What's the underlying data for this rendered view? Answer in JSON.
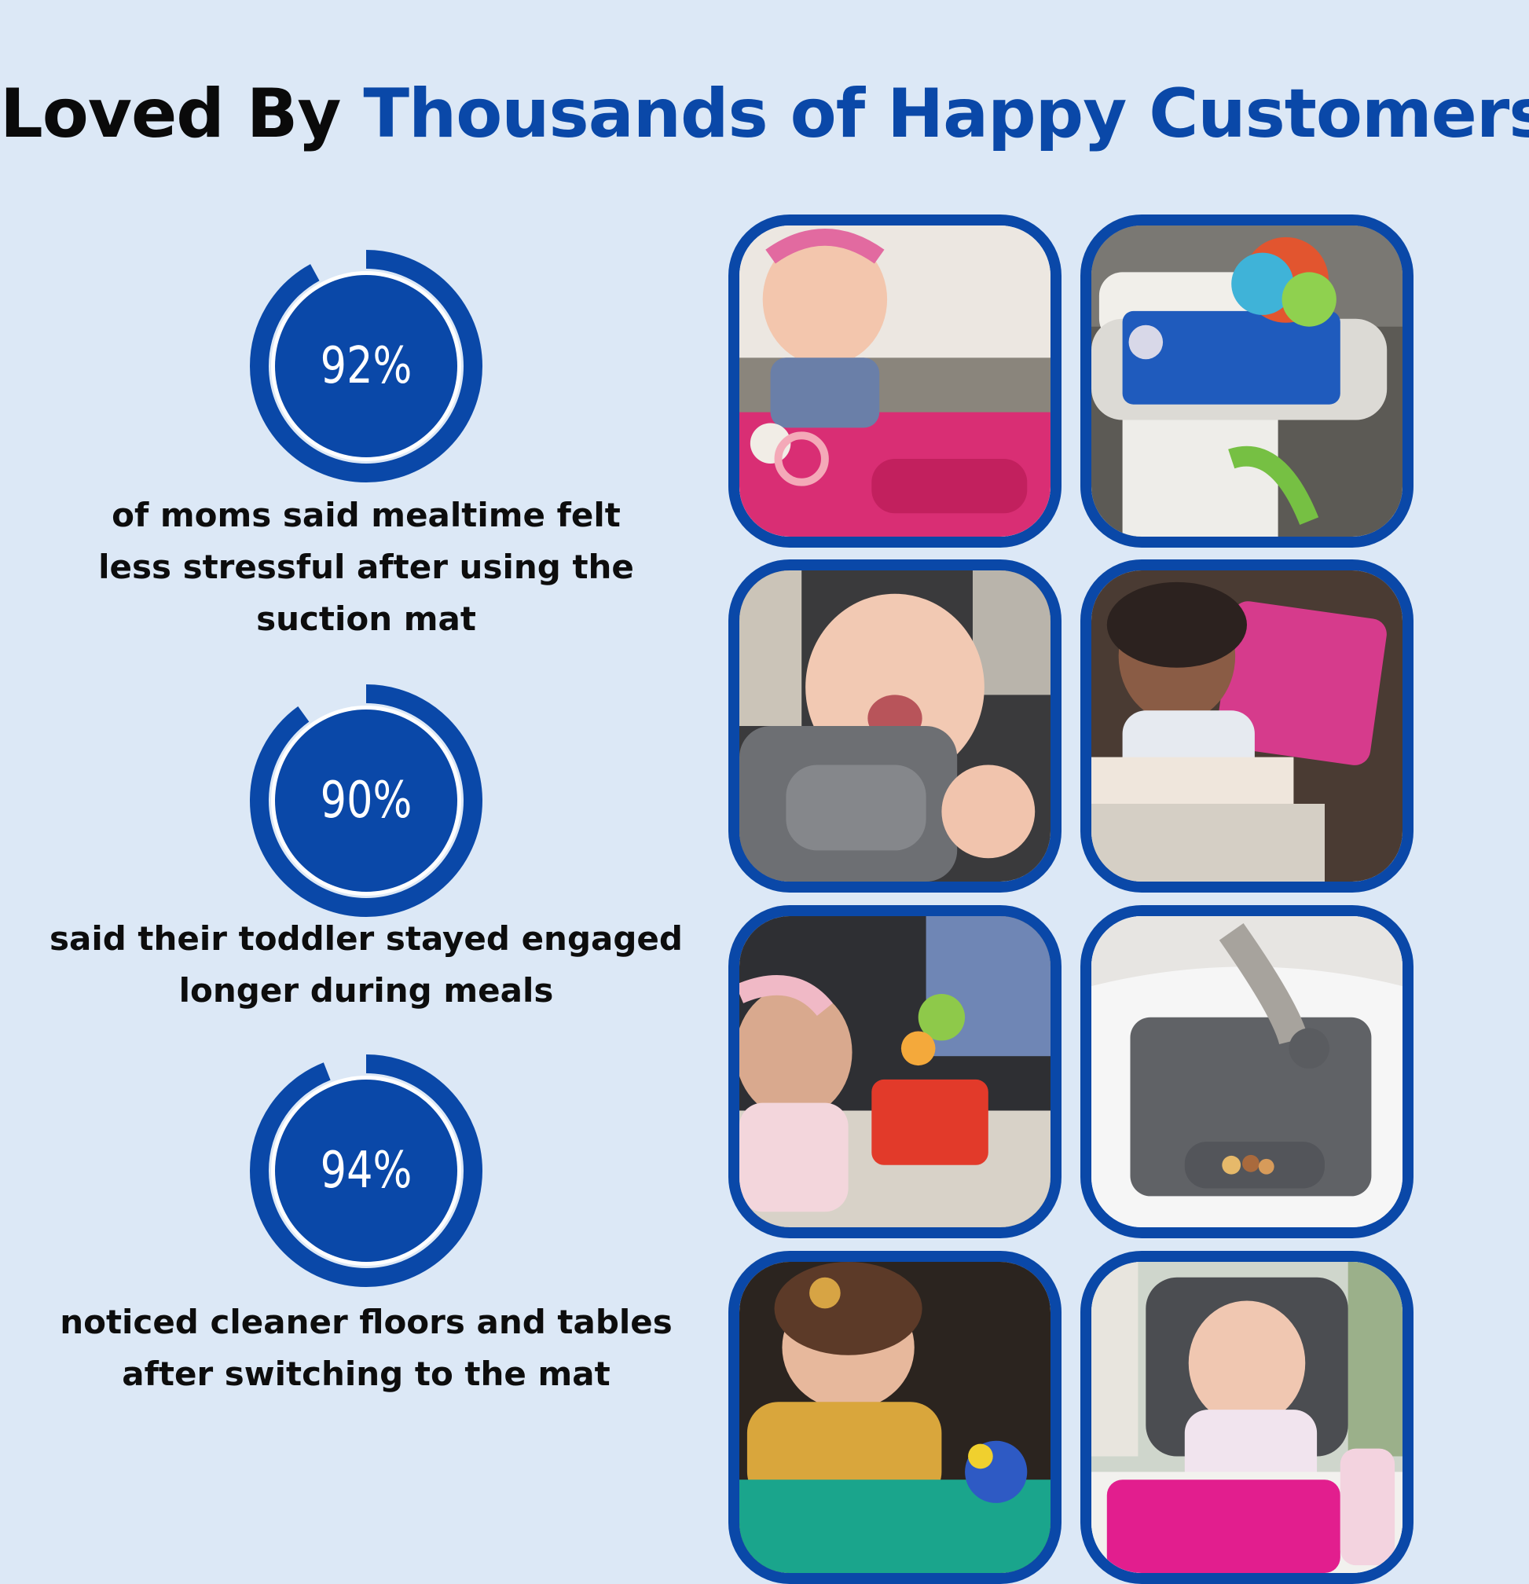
{
  "headline": {
    "part1": "Loved By ",
    "part2": "Thousands of Happy Customers"
  },
  "colors": {
    "brand_blue": "#0a48a8",
    "background": "#dce8f6",
    "text": "#0d0d0d"
  },
  "stats": [
    {
      "percent_text": "92%",
      "value": 92,
      "lines": [
        "of moms said mealtime felt",
        "less stressful after using the",
        "suction mat"
      ]
    },
    {
      "percent_text": "90%",
      "value": 90,
      "lines": [
        "said their toddler stayed engaged",
        "longer during meals"
      ]
    },
    {
      "percent_text": "94%",
      "value": 94,
      "lines": [
        "noticed cleaner floors and tables",
        "after switching to the mat"
      ]
    }
  ]
}
